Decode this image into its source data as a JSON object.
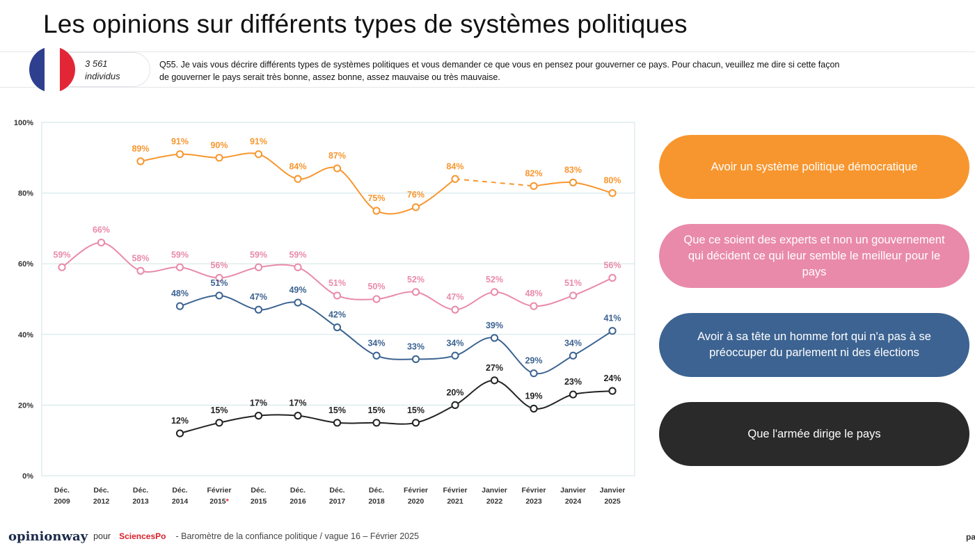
{
  "title": "Les opinions sur différents types de systèmes politiques",
  "sample": {
    "count": "3 561",
    "unit": "individus"
  },
  "question_line1": "Q55. Je vais vous décrire différents types de systèmes politiques et vous demander ce que vous en pensez pour gouverner ce pays. Pour chacun, veuillez me dire si cette façon",
  "question_line2": "de gouverner le pays serait très bonne, assez bonne, assez mauvaise ou très mauvaise.",
  "flag_colors": [
    "#2f3f8f",
    "#ffffff",
    "#e32636"
  ],
  "chart_data": {
    "type": "line",
    "ylim": [
      0,
      100
    ],
    "y_ticks": [
      "0%",
      "20%",
      "40%",
      "60%",
      "80%",
      "100%"
    ],
    "grid": true,
    "categories": [
      [
        "Déc.",
        "2009"
      ],
      [
        "Déc.",
        "2012"
      ],
      [
        "Déc.",
        "2013"
      ],
      [
        "Déc.",
        "2014"
      ],
      [
        "Février",
        "2015*"
      ],
      [
        "Déc.",
        "2015"
      ],
      [
        "Déc.",
        "2016"
      ],
      [
        "Déc.",
        "2017"
      ],
      [
        "Déc.",
        "2018"
      ],
      [
        "Février",
        "2020"
      ],
      [
        "Février",
        "2021"
      ],
      [
        "Janvier",
        "2022"
      ],
      [
        "Février",
        "2023"
      ],
      [
        "Janvier",
        "2024"
      ],
      [
        "Janvier",
        "2025"
      ]
    ],
    "legend_placement": "right",
    "series": [
      {
        "name": "Avoir un système politique démocratique",
        "color": "#f7962e",
        "values": [
          null,
          null,
          89,
          91,
          90,
          91,
          84,
          87,
          75,
          76,
          84,
          null,
          82,
          83,
          80
        ],
        "dashed_gap": [
          10,
          12
        ]
      },
      {
        "name": "Que ce soient des experts et non un gouvernement qui décident ce qui leur semble le meilleur pour le pays",
        "color": "#e98aab",
        "values": [
          59,
          66,
          58,
          59,
          56,
          59,
          59,
          51,
          50,
          52,
          47,
          52,
          48,
          51,
          56
        ]
      },
      {
        "name": "Avoir à sa tête un homme fort qui n'a pas à se préoccuper du parlement ni des élections",
        "color": "#3c6391",
        "values": [
          null,
          null,
          null,
          48,
          51,
          47,
          49,
          42,
          34,
          33,
          34,
          39,
          29,
          34,
          41
        ]
      },
      {
        "name": "Que l'armée dirige le pays",
        "color": "#222222",
        "values": [
          null,
          null,
          null,
          12,
          15,
          17,
          17,
          15,
          15,
          15,
          20,
          27,
          19,
          23,
          24
        ]
      }
    ]
  },
  "legend": [
    {
      "label": "Avoir un système politique démocratique",
      "color": "#f7962e"
    },
    {
      "label": "Que ce soient des experts et non un gouvernement qui décident ce qui leur semble le meilleur pour le pays",
      "color": "#e98aab"
    },
    {
      "label": "Avoir à sa tête un homme fort qui n'a pas à se préoccuper du parlement ni des élections",
      "color": "#3c6391"
    },
    {
      "label": "Que l'armée dirige le pays",
      "color": "#2a2a2a"
    }
  ],
  "footer": {
    "brand": "opinionway",
    "pour": "pour",
    "partner": "SciencesPo",
    "text": "- Baromètre de la confiance politique / vague 16 – Février 2025",
    "page": "pa"
  }
}
